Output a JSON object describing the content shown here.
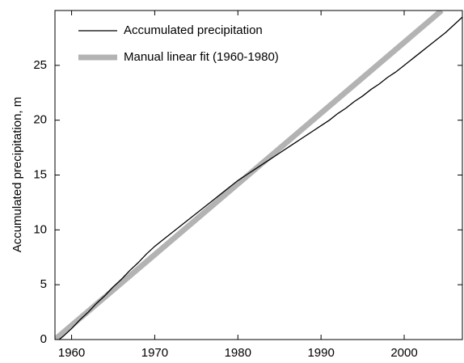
{
  "chart_data": {
    "type": "line",
    "ylabel": "Accumulated precipitation, m",
    "xlim": [
      1958,
      2007
    ],
    "ylim": [
      0,
      30
    ],
    "xticks": [
      1960,
      1970,
      1980,
      1990,
      2000
    ],
    "yticks": [
      0,
      5,
      10,
      15,
      20,
      25
    ],
    "legend": "upper left",
    "series": [
      {
        "name": "Accumulated precipitation",
        "color": "#000000",
        "width": 1.3,
        "x": [
          1958.5,
          1959,
          1960,
          1961,
          1962,
          1963,
          1964,
          1965,
          1966,
          1967,
          1968,
          1969,
          1970,
          1971,
          1972,
          1973,
          1974,
          1975,
          1976,
          1977,
          1978,
          1979,
          1980,
          1981,
          1982,
          1983,
          1984,
          1985,
          1986,
          1987,
          1988,
          1989,
          1990,
          1991,
          1992,
          1993,
          1994,
          1995,
          1996,
          1997,
          1998,
          1999,
          2000,
          2001,
          2002,
          2003,
          2004,
          2005,
          2006,
          2007
        ],
        "values": [
          0,
          0.3,
          1.0,
          1.8,
          2.5,
          3.3,
          4.0,
          4.8,
          5.5,
          6.3,
          7.0,
          7.8,
          8.5,
          9.1,
          9.7,
          10.3,
          10.9,
          11.5,
          12.1,
          12.7,
          13.3,
          13.9,
          14.5,
          15.0,
          15.5,
          16.0,
          16.5,
          17.0,
          17.5,
          18.0,
          18.5,
          19.0,
          19.5,
          20.0,
          20.6,
          21.1,
          21.7,
          22.2,
          22.8,
          23.3,
          23.9,
          24.4,
          25.0,
          25.6,
          26.2,
          26.8,
          27.4,
          28.0,
          28.7,
          29.4
        ]
      },
      {
        "name": "Manual linear fit (1960-1980)",
        "color": "#b3b3b3",
        "width": 7,
        "x": [
          1958,
          2004.5
        ],
        "values": [
          0,
          30
        ]
      }
    ]
  }
}
